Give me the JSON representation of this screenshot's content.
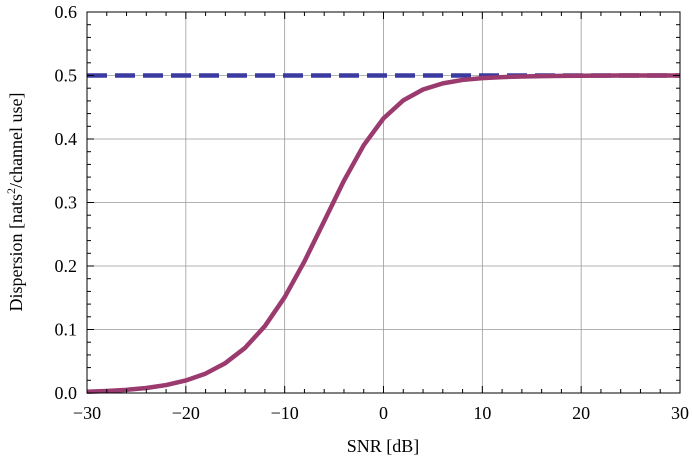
{
  "chart_data": {
    "type": "line",
    "title": "",
    "xlabel": "SNR [dB]",
    "ylabel": {
      "prefix": "Dispersion [nats",
      "superscript": "2",
      "suffix": "/channel use]"
    },
    "xlim": [
      -30,
      30
    ],
    "ylim": [
      0,
      0.6
    ],
    "x_ticks": [
      -30,
      -20,
      -10,
      0,
      10,
      20,
      30
    ],
    "x_tick_labels": [
      "−30",
      "−20",
      "−10",
      "0",
      "10",
      "20",
      "30"
    ],
    "y_ticks": [
      0,
      0.1,
      0.2,
      0.3,
      0.4,
      0.5,
      0.6
    ],
    "y_tick_labels": [
      "0.0",
      "0.1",
      "0.2",
      "0.3",
      "0.4",
      "0.5",
      "0.6"
    ],
    "grid": true,
    "series": [
      {
        "style": "dashed",
        "color": "#3a3aa0",
        "x": [
          -30,
          30
        ],
        "y": [
          0.5,
          0.5
        ]
      },
      {
        "style": "solid",
        "color": "#9a3a6e",
        "x": [
          -30,
          -28,
          -26,
          -24,
          -22,
          -20,
          -18,
          -16,
          -14,
          -12,
          -10,
          -8,
          -6,
          -4,
          -2,
          0,
          2,
          4,
          6,
          8,
          10,
          12,
          14,
          16,
          18,
          20,
          22,
          24,
          26,
          28,
          30
        ],
        "y": [
          0.002,
          0.0032,
          0.005,
          0.0079,
          0.0125,
          0.0197,
          0.0306,
          0.0471,
          0.0712,
          0.1054,
          0.1509,
          0.2072,
          0.2707,
          0.3344,
          0.3903,
          0.4325,
          0.4608,
          0.4779,
          0.4876,
          0.493,
          0.4959,
          0.4975,
          0.4984,
          0.499,
          0.4994,
          0.4996,
          0.4998,
          0.4999,
          0.4999,
          0.5,
          0.5
        ]
      }
    ]
  }
}
